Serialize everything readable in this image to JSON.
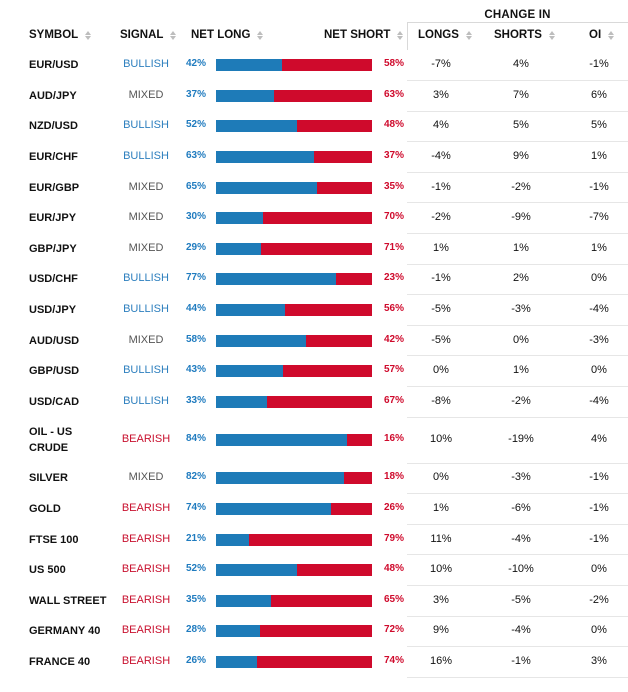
{
  "headers": {
    "change_in": "CHANGE IN",
    "symbol": "SYMBOL",
    "signal": "SIGNAL",
    "net_long": "NET LONG",
    "net_short": "NET SHORT",
    "longs": "LONGS",
    "shorts": "SHORTS",
    "oi": "OI"
  },
  "colors": {
    "long": "#1e7bb8",
    "short": "#cf0a2c",
    "bullish": "#2d7fbe",
    "mixed": "#555555",
    "bearish": "#c8102e"
  },
  "rows": [
    {
      "symbol": "EUR/USD",
      "signal": "BULLISH",
      "net_long": "42%",
      "net_short": "58%",
      "longs": "-7%",
      "shorts": "4%",
      "oi": "-1%",
      "long_value": 42
    },
    {
      "symbol": "AUD/JPY",
      "signal": "MIXED",
      "net_long": "37%",
      "net_short": "63%",
      "longs": "3%",
      "shorts": "7%",
      "oi": "6%",
      "long_value": 37
    },
    {
      "symbol": "NZD/USD",
      "signal": "BULLISH",
      "net_long": "52%",
      "net_short": "48%",
      "longs": "4%",
      "shorts": "5%",
      "oi": "5%",
      "long_value": 52
    },
    {
      "symbol": "EUR/CHF",
      "signal": "BULLISH",
      "net_long": "63%",
      "net_short": "37%",
      "longs": "-4%",
      "shorts": "9%",
      "oi": "1%",
      "long_value": 63
    },
    {
      "symbol": "EUR/GBP",
      "signal": "MIXED",
      "net_long": "65%",
      "net_short": "35%",
      "longs": "-1%",
      "shorts": "-2%",
      "oi": "-1%",
      "long_value": 65
    },
    {
      "symbol": "EUR/JPY",
      "signal": "MIXED",
      "net_long": "30%",
      "net_short": "70%",
      "longs": "-2%",
      "shorts": "-9%",
      "oi": "-7%",
      "long_value": 30
    },
    {
      "symbol": "GBP/JPY",
      "signal": "MIXED",
      "net_long": "29%",
      "net_short": "71%",
      "longs": "1%",
      "shorts": "1%",
      "oi": "1%",
      "long_value": 29
    },
    {
      "symbol": "USD/CHF",
      "signal": "BULLISH",
      "net_long": "77%",
      "net_short": "23%",
      "longs": "-1%",
      "shorts": "2%",
      "oi": "0%",
      "long_value": 77
    },
    {
      "symbol": "USD/JPY",
      "signal": "BULLISH",
      "net_long": "44%",
      "net_short": "56%",
      "longs": "-5%",
      "shorts": "-3%",
      "oi": "-4%",
      "long_value": 44
    },
    {
      "symbol": "AUD/USD",
      "signal": "MIXED",
      "net_long": "58%",
      "net_short": "42%",
      "longs": "-5%",
      "shorts": "0%",
      "oi": "-3%",
      "long_value": 58
    },
    {
      "symbol": "GBP/USD",
      "signal": "BULLISH",
      "net_long": "43%",
      "net_short": "57%",
      "longs": "0%",
      "shorts": "1%",
      "oi": "0%",
      "long_value": 43
    },
    {
      "symbol": "USD/CAD",
      "signal": "BULLISH",
      "net_long": "33%",
      "net_short": "67%",
      "longs": "-8%",
      "shorts": "-2%",
      "oi": "-4%",
      "long_value": 33
    },
    {
      "symbol": "OIL - US CRUDE",
      "signal": "BEARISH",
      "net_long": "84%",
      "net_short": "16%",
      "longs": "10%",
      "shorts": "-19%",
      "oi": "4%",
      "long_value": 84
    },
    {
      "symbol": "SILVER",
      "signal": "MIXED",
      "net_long": "82%",
      "net_short": "18%",
      "longs": "0%",
      "shorts": "-3%",
      "oi": "-1%",
      "long_value": 82
    },
    {
      "symbol": "GOLD",
      "signal": "BEARISH",
      "net_long": "74%",
      "net_short": "26%",
      "longs": "1%",
      "shorts": "-6%",
      "oi": "-1%",
      "long_value": 74
    },
    {
      "symbol": "FTSE 100",
      "signal": "BEARISH",
      "net_long": "21%",
      "net_short": "79%",
      "longs": "11%",
      "shorts": "-4%",
      "oi": "-1%",
      "long_value": 21
    },
    {
      "symbol": "US 500",
      "signal": "BEARISH",
      "net_long": "52%",
      "net_short": "48%",
      "longs": "10%",
      "shorts": "-10%",
      "oi": "0%",
      "long_value": 52
    },
    {
      "symbol": "WALL STREET",
      "signal": "BEARISH",
      "net_long": "35%",
      "net_short": "65%",
      "longs": "3%",
      "shorts": "-5%",
      "oi": "-2%",
      "long_value": 35
    },
    {
      "symbol": "GERMANY 40",
      "signal": "BEARISH",
      "net_long": "28%",
      "net_short": "72%",
      "longs": "9%",
      "shorts": "-4%",
      "oi": "0%",
      "long_value": 28
    },
    {
      "symbol": "FRANCE 40",
      "signal": "BEARISH",
      "net_long": "26%",
      "net_short": "74%",
      "longs": "16%",
      "shorts": "-1%",
      "oi": "3%",
      "long_value": 26
    }
  ]
}
